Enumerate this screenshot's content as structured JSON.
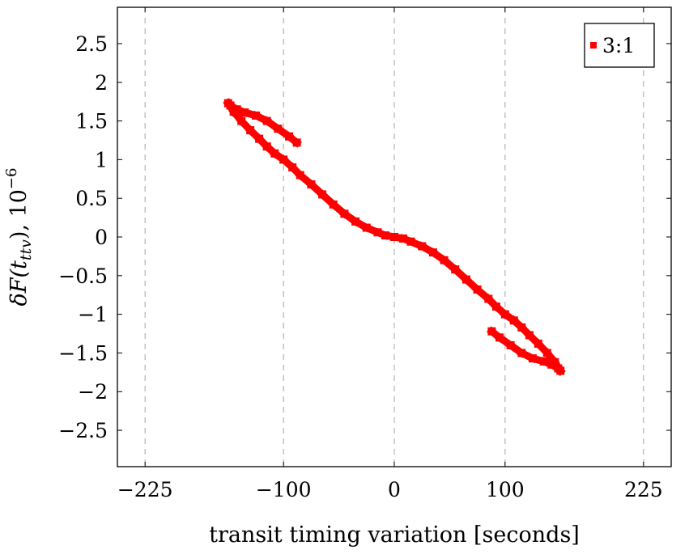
{
  "chart_data": {
    "type": "scatter",
    "xlabel": "transit timing variation [seconds]",
    "ylabel": "δF(t_ttv), 10^−6",
    "ylabel_parts": {
      "main": "δF(t",
      "sub": "ttv",
      "close": "), 10",
      "exp": "−6"
    },
    "xlim": [
      -250,
      250
    ],
    "ylim": [
      -2.97,
      2.97
    ],
    "xticks": [
      -225,
      -100,
      0,
      100,
      225
    ],
    "xtick_labels": [
      "−225",
      "−100",
      "0",
      "100",
      "225"
    ],
    "yticks": [
      -2.5,
      -2,
      -1.5,
      -1,
      -0.5,
      0,
      0.5,
      1,
      1.5,
      2,
      2.5
    ],
    "ytick_labels": [
      "−2.5",
      "−2",
      "−1.5",
      "−1",
      "−0.5",
      "0",
      "0.5",
      "1",
      "1.5",
      "2",
      "2.5"
    ],
    "grid": {
      "x": true,
      "y": false,
      "style": "dashed"
    },
    "legend_position": "top-right",
    "series": [
      {
        "name": "3:1",
        "color": "#ff0000",
        "marker": "square",
        "x": [
          -88,
          -95,
          -105,
          -115,
          -125,
          -135,
          -142,
          -148,
          -150,
          -145,
          -138,
          -130,
          -122,
          -115,
          -108,
          -100,
          -92,
          -85,
          -75,
          -65,
          -55,
          -45,
          -35,
          -25,
          -15,
          -8,
          0,
          8,
          15,
          25,
          35,
          45,
          55,
          65,
          75,
          85,
          92,
          100,
          108,
          115,
          122,
          130,
          138,
          145,
          150,
          148,
          142,
          135,
          125,
          115,
          105,
          95,
          88
        ],
        "y": [
          1.22,
          1.3,
          1.4,
          1.5,
          1.57,
          1.61,
          1.65,
          1.7,
          1.73,
          1.62,
          1.5,
          1.38,
          1.27,
          1.17,
          1.08,
          1.0,
          0.9,
          0.8,
          0.68,
          0.55,
          0.42,
          0.3,
          0.2,
          0.12,
          0.06,
          0.02,
          0,
          -0.02,
          -0.06,
          -0.12,
          -0.2,
          -0.3,
          -0.42,
          -0.55,
          -0.68,
          -0.8,
          -0.9,
          -1.0,
          -1.08,
          -1.17,
          -1.27,
          -1.38,
          -1.5,
          -1.62,
          -1.73,
          -1.7,
          -1.65,
          -1.61,
          -1.57,
          -1.5,
          -1.4,
          -1.3,
          -1.22
        ]
      }
    ]
  }
}
